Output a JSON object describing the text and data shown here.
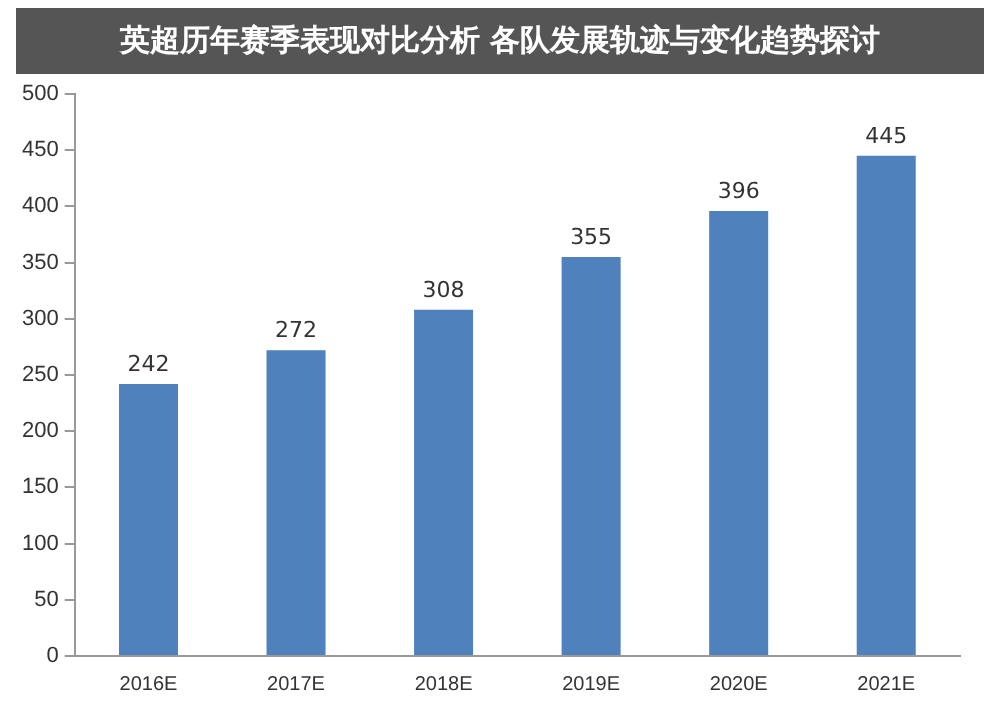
{
  "chart_data": {
    "type": "bar",
    "title": "英超历年赛季表现对比分析 各队发展轨迹与变化趋势探讨",
    "categories": [
      "2016E",
      "2017E",
      "2018E",
      "2019E",
      "2020E",
      "2021E"
    ],
    "values": [
      242,
      272,
      308,
      355,
      396,
      445
    ],
    "color": "#4f81bd",
    "ylim": [
      0,
      500
    ],
    "yticks": [
      0,
      50,
      100,
      150,
      200,
      250,
      300,
      350,
      400,
      450,
      500
    ],
    "grid": false,
    "data_labels": true
  }
}
